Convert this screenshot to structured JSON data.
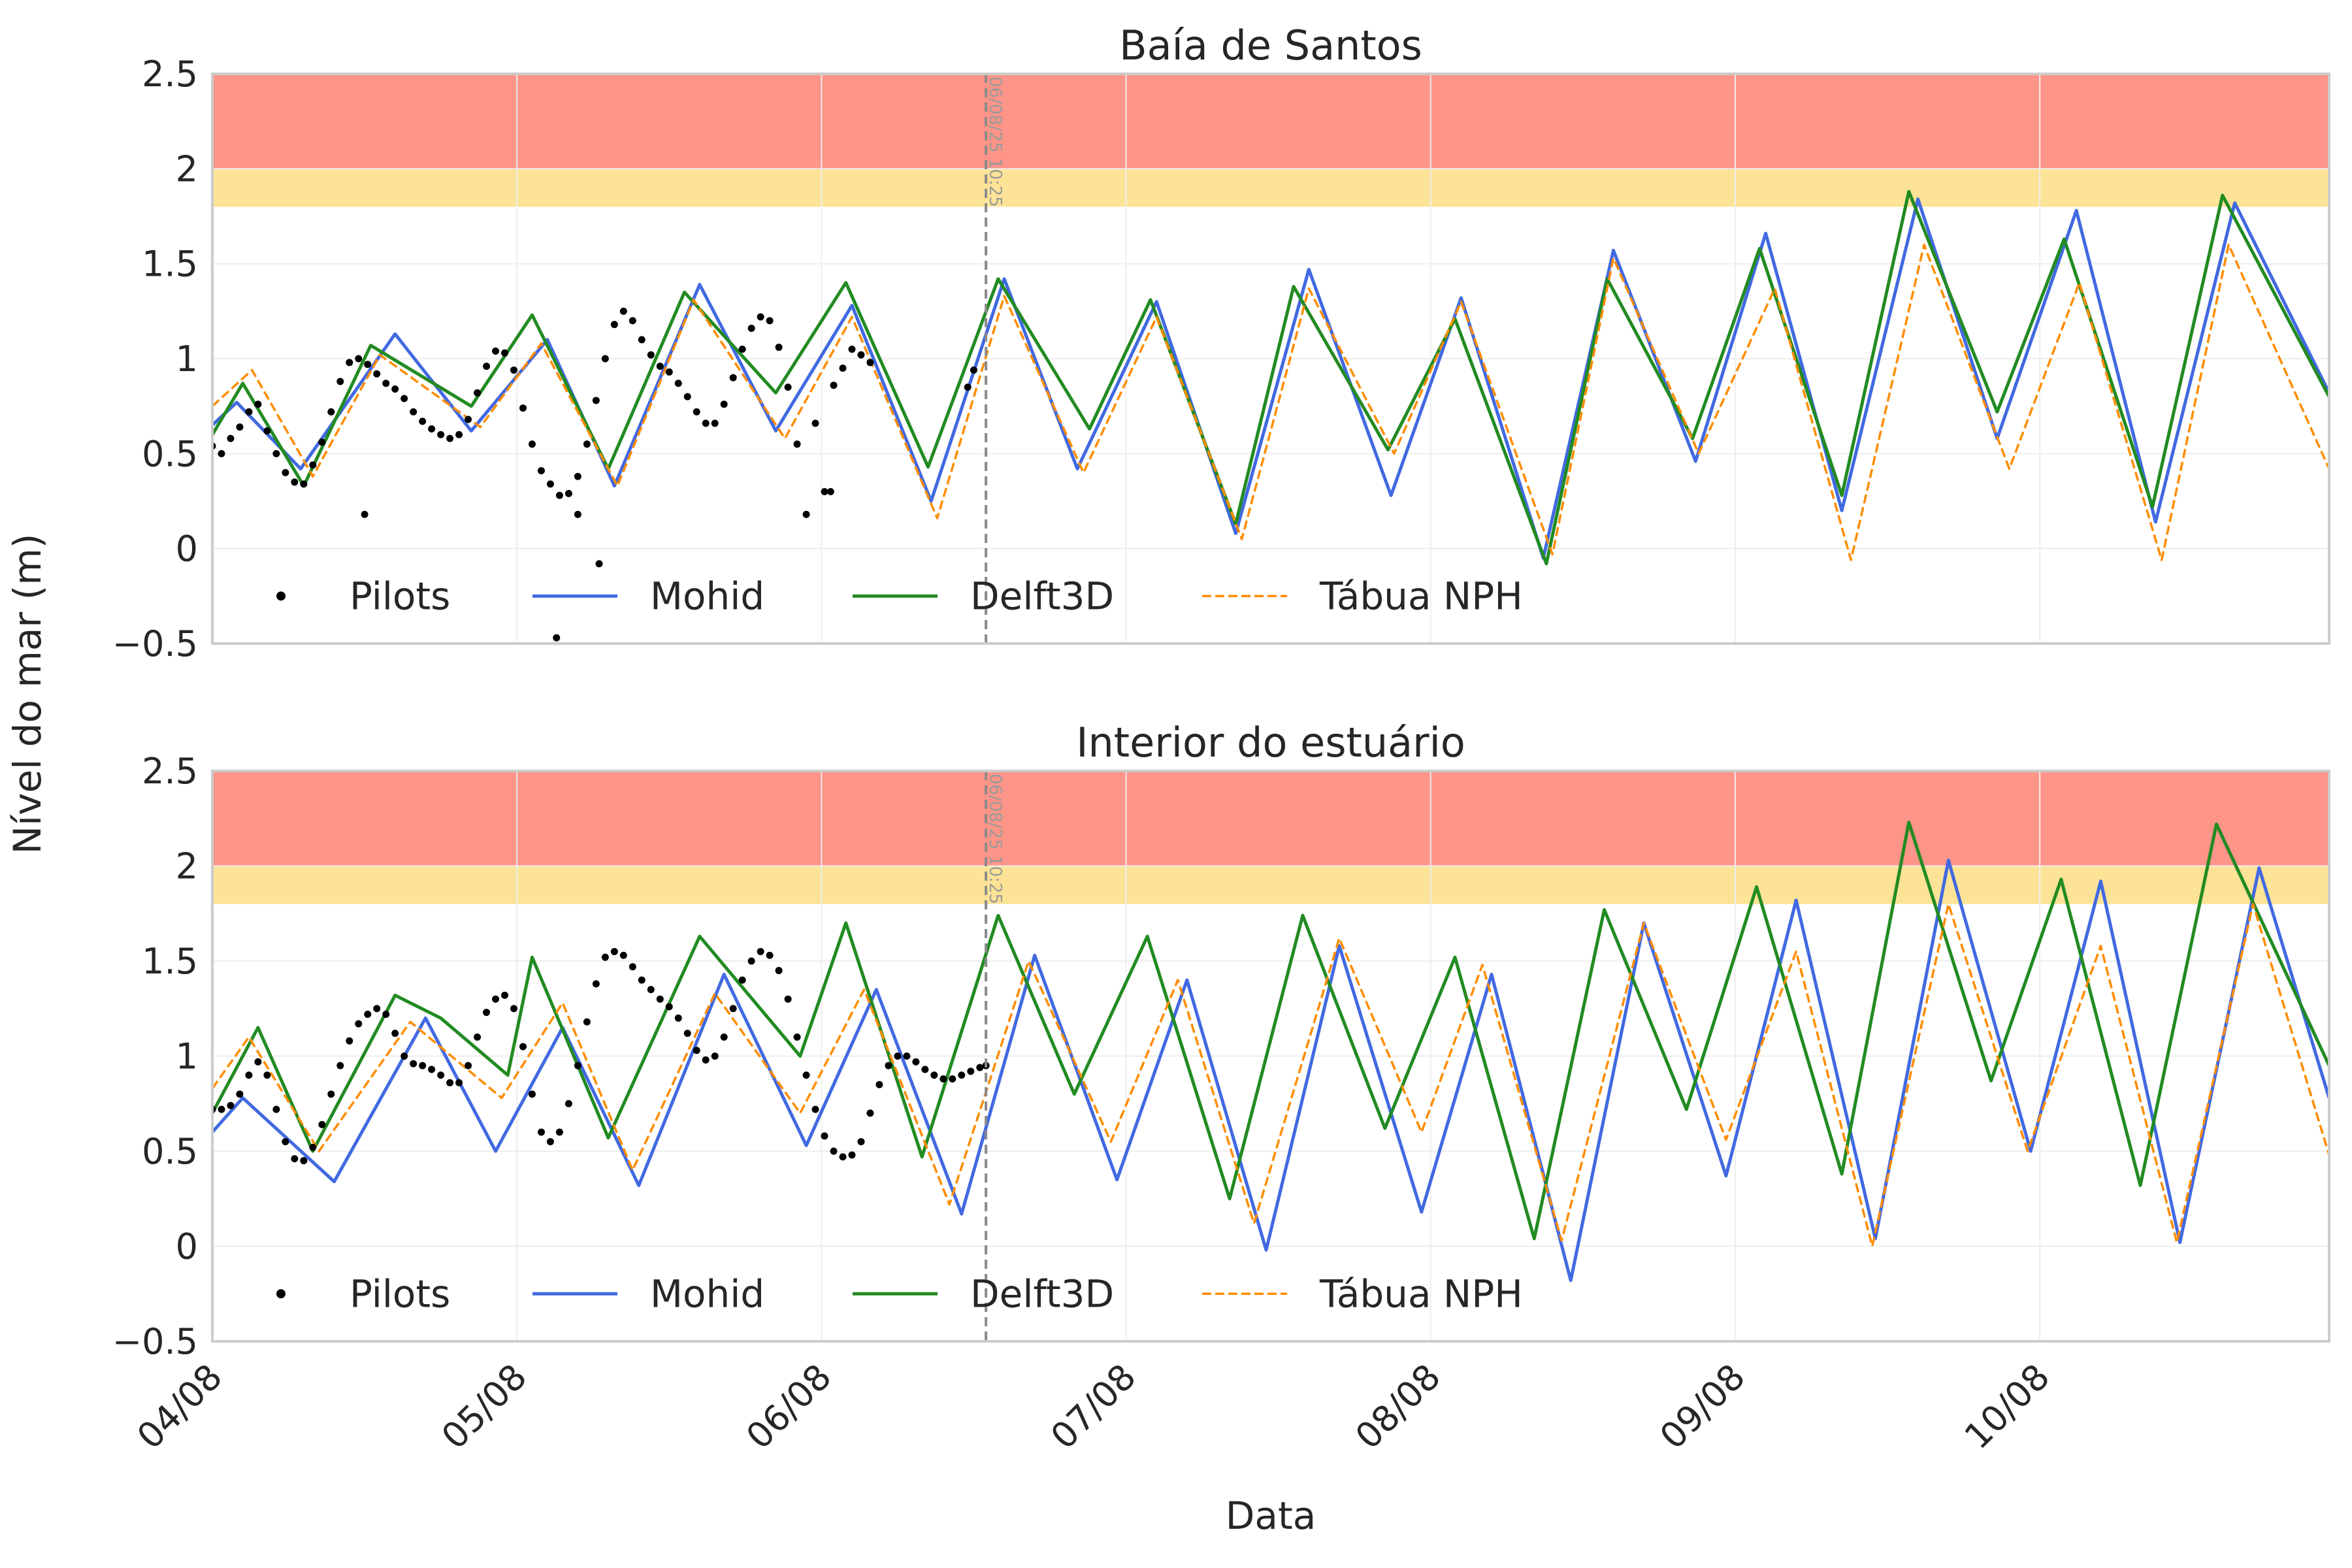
{
  "figure": {
    "ylabel": "Nível do mar (m)",
    "xlabel": "Data",
    "xtick_labels": [
      "04/08",
      "05/08",
      "06/08",
      "07/08",
      "08/08",
      "09/08",
      "10/08"
    ],
    "ytick_labels": [
      "−0.5",
      "0",
      "0.5",
      "1",
      "1.5",
      "2",
      "2.5"
    ]
  },
  "colors": {
    "mohid": "#4169e1",
    "delft3d": "#228b22",
    "tabua": "#ff8c00",
    "pilots": "#000000",
    "band_red": "#ff9488",
    "band_yellow": "#fde396",
    "vline": "#8a8a8a",
    "axes_frame": "#cccccc",
    "grid": "#eeeeee"
  },
  "chart_data": [
    {
      "type": "line",
      "title": "Baía de Santos",
      "xlabel": "Data",
      "ylabel": "Nível do mar (m)",
      "x_start": "04/08 00:00",
      "x_end": "10/08 23:00",
      "xlim_days": [
        0,
        6.95
      ],
      "ylim": [
        -0.5,
        2.5
      ],
      "legend": {
        "placement": "lower-left",
        "entries": [
          "Pilots",
          "Mohid",
          "Delft3D",
          "Tábua NPH"
        ]
      },
      "bands": [
        {
          "from": 1.8,
          "to": 2.0,
          "color": "#fde396"
        },
        {
          "from": 2.0,
          "to": 2.5,
          "color": "#ff9488"
        }
      ],
      "vline": {
        "x_day": 2.54,
        "label": "06/08/25 10:25"
      },
      "series": [
        {
          "name": "Mohid",
          "style": "solid",
          "color": "#4169e1",
          "x": [
            0,
            0.08,
            0.29,
            0.6,
            0.85,
            1.1,
            1.32,
            1.6,
            1.85,
            2.1,
            2.36,
            2.6,
            2.84,
            3.1,
            3.36,
            3.6,
            3.87,
            4.1,
            4.37,
            4.6,
            4.87,
            5.1,
            5.35,
            5.6,
            5.86,
            6.12,
            6.38,
            6.64,
            6.95
          ],
          "y": [
            0.65,
            0.77,
            0.42,
            1.13,
            0.62,
            1.1,
            0.33,
            1.39,
            0.62,
            1.28,
            0.25,
            1.42,
            0.42,
            1.3,
            0.08,
            1.47,
            0.28,
            1.32,
            -0.05,
            1.57,
            0.46,
            1.66,
            0.2,
            1.84,
            0.58,
            1.78,
            0.14,
            1.82,
            0.82
          ]
        },
        {
          "name": "Delft3D",
          "style": "solid",
          "color": "#228b22",
          "x": [
            0,
            0.1,
            0.3,
            0.52,
            0.85,
            1.05,
            1.3,
            1.55,
            1.85,
            2.08,
            2.35,
            2.58,
            2.88,
            3.08,
            3.36,
            3.55,
            3.86,
            4.08,
            4.38,
            4.58,
            4.86,
            5.08,
            5.35,
            5.57,
            5.86,
            6.08,
            6.37,
            6.6,
            6.95
          ],
          "y": [
            0.6,
            0.87,
            0.33,
            1.07,
            0.75,
            1.23,
            0.42,
            1.35,
            0.82,
            1.4,
            0.43,
            1.42,
            0.63,
            1.31,
            0.13,
            1.38,
            0.52,
            1.21,
            -0.08,
            1.42,
            0.58,
            1.58,
            0.28,
            1.88,
            0.72,
            1.63,
            0.22,
            1.86,
            0.8
          ]
        },
        {
          "name": "Tábua NPH",
          "style": "dashed",
          "color": "#ff8c00",
          "x": [
            0,
            0.13,
            0.33,
            0.55,
            0.88,
            1.08,
            1.33,
            1.58,
            1.88,
            2.1,
            2.38,
            2.6,
            2.86,
            3.1,
            3.38,
            3.6,
            3.88,
            4.1,
            4.4,
            4.6,
            4.88,
            5.13,
            5.38,
            5.62,
            5.9,
            6.13,
            6.4,
            6.62,
            6.95
          ],
          "y": [
            0.75,
            0.94,
            0.38,
            1.02,
            0.64,
            1.08,
            0.33,
            1.31,
            0.58,
            1.22,
            0.16,
            1.33,
            0.4,
            1.22,
            0.05,
            1.37,
            0.5,
            1.3,
            -0.03,
            1.53,
            0.5,
            1.37,
            -0.06,
            1.6,
            0.42,
            1.4,
            -0.06,
            1.6,
            0.42
          ]
        }
      ],
      "pilots": {
        "name": "Pilots",
        "color": "#000000",
        "x": [
          0,
          0.03,
          0.06,
          0.09,
          0.12,
          0.15,
          0.18,
          0.21,
          0.24,
          0.27,
          0.3,
          0.33,
          0.36,
          0.39,
          0.42,
          0.45,
          0.48,
          0.51,
          0.54,
          0.57,
          0.6,
          0.63,
          0.66,
          0.69,
          0.72,
          0.75,
          0.78,
          0.81,
          0.84,
          0.87,
          0.9,
          0.93,
          0.96,
          0.99,
          1.02,
          1.05,
          1.08,
          1.11,
          1.14,
          1.17,
          1.2,
          1.23,
          1.26,
          1.29,
          1.32,
          1.35,
          1.38,
          1.41,
          1.44,
          1.47,
          1.5,
          1.53,
          1.56,
          1.59,
          1.62,
          1.65,
          1.68,
          1.71,
          1.74,
          1.77,
          1.8,
          1.83,
          1.86,
          1.89,
          1.92,
          1.95,
          1.98,
          2.01,
          2.04,
          2.07,
          2.1,
          2.13,
          2.16,
          0.5,
          1.27,
          1.13,
          1.2,
          2.03,
          2.48,
          2.5
        ],
        "y": [
          0.54,
          0.5,
          0.58,
          0.64,
          0.72,
          0.76,
          0.62,
          0.5,
          0.4,
          0.35,
          0.34,
          0.44,
          0.56,
          0.72,
          0.88,
          0.98,
          1.0,
          0.97,
          0.92,
          0.87,
          0.84,
          0.79,
          0.72,
          0.67,
          0.63,
          0.6,
          0.58,
          0.6,
          0.68,
          0.82,
          0.96,
          1.04,
          1.03,
          0.94,
          0.74,
          0.55,
          0.41,
          0.34,
          0.28,
          0.29,
          0.38,
          0.55,
          0.78,
          1.0,
          1.18,
          1.25,
          1.2,
          1.1,
          1.02,
          0.96,
          0.93,
          0.87,
          0.8,
          0.72,
          0.66,
          0.66,
          0.76,
          0.9,
          1.05,
          1.16,
          1.22,
          1.2,
          1.06,
          0.85,
          0.55,
          0.18,
          0.66,
          0.3,
          0.86,
          0.95,
          1.05,
          1.02,
          0.98,
          0.18,
          -0.08,
          -0.47,
          0.18,
          0.3,
          0.85,
          0.94
        ]
      }
    },
    {
      "type": "line",
      "title": "Interior do estuário",
      "xlabel": "Data",
      "ylabel": "Nível do mar (m)",
      "x_start": "04/08 00:00",
      "x_end": "10/08 23:00",
      "xlim_days": [
        0,
        6.95
      ],
      "ylim": [
        -0.5,
        2.5
      ],
      "legend": {
        "placement": "lower-left",
        "entries": [
          "Pilots",
          "Mohid",
          "Delft3D",
          "Tábua NPH"
        ]
      },
      "bands": [
        {
          "from": 1.8,
          "to": 2.0,
          "color": "#fde396"
        },
        {
          "from": 2.0,
          "to": 2.5,
          "color": "#ff9488"
        }
      ],
      "vline": {
        "x_day": 2.54,
        "label": "06/08/25 10:25"
      },
      "series": [
        {
          "name": "Mohid",
          "style": "solid",
          "color": "#4169e1",
          "x": [
            0,
            0.1,
            0.4,
            0.7,
            0.93,
            1.15,
            1.4,
            1.68,
            1.95,
            2.18,
            2.46,
            2.7,
            2.97,
            3.2,
            3.46,
            3.7,
            3.97,
            4.2,
            4.46,
            4.7,
            4.97,
            5.2,
            5.46,
            5.7,
            5.97,
            6.2,
            6.46,
            6.72,
            6.95
          ],
          "y": [
            0.6,
            0.78,
            0.34,
            1.2,
            0.5,
            1.15,
            0.32,
            1.43,
            0.53,
            1.35,
            0.17,
            1.53,
            0.35,
            1.4,
            -0.02,
            1.58,
            0.18,
            1.43,
            -0.18,
            1.7,
            0.37,
            1.82,
            0.04,
            2.03,
            0.5,
            1.92,
            0.02,
            1.99,
            0.78
          ]
        },
        {
          "name": "Delft3D",
          "style": "solid",
          "color": "#228b22",
          "x": [
            0,
            0.15,
            0.33,
            0.6,
            0.75,
            0.97,
            1.05,
            1.3,
            1.6,
            1.93,
            2.08,
            2.33,
            2.58,
            2.83,
            3.07,
            3.34,
            3.58,
            3.85,
            4.08,
            4.34,
            4.57,
            4.84,
            5.07,
            5.35,
            5.57,
            5.84,
            6.07,
            6.33,
            6.58,
            6.95
          ],
          "y": [
            0.7,
            1.15,
            0.5,
            1.32,
            1.2,
            0.9,
            1.52,
            0.57,
            1.63,
            1.0,
            1.7,
            0.47,
            1.74,
            0.8,
            1.63,
            0.25,
            1.74,
            0.62,
            1.52,
            0.04,
            1.77,
            0.72,
            1.89,
            0.38,
            2.23,
            0.87,
            1.93,
            0.32,
            2.22,
            0.95
          ]
        },
        {
          "name": "Tábua NPH",
          "style": "dashed",
          "color": "#ff8c00",
          "x": [
            0,
            0.12,
            0.35,
            0.65,
            0.95,
            1.15,
            1.38,
            1.65,
            1.93,
            2.14,
            2.42,
            2.68,
            2.95,
            3.17,
            3.42,
            3.7,
            3.97,
            4.17,
            4.43,
            4.7,
            4.97,
            5.2,
            5.45,
            5.7,
            5.96,
            6.2,
            6.45,
            6.7,
            6.95
          ],
          "y": [
            0.83,
            1.1,
            0.5,
            1.18,
            0.78,
            1.28,
            0.4,
            1.33,
            0.7,
            1.35,
            0.22,
            1.5,
            0.55,
            1.4,
            0.12,
            1.62,
            0.6,
            1.48,
            0.03,
            1.7,
            0.56,
            1.55,
            0.0,
            1.8,
            0.5,
            1.58,
            0.02,
            1.8,
            0.48
          ]
        }
      ],
      "pilots": {
        "name": "Pilots",
        "color": "#000000",
        "x": [
          0,
          0.03,
          0.06,
          0.09,
          0.12,
          0.15,
          0.18,
          0.21,
          0.24,
          0.27,
          0.3,
          0.33,
          0.36,
          0.39,
          0.42,
          0.45,
          0.48,
          0.51,
          0.54,
          0.57,
          0.6,
          0.63,
          0.66,
          0.69,
          0.72,
          0.75,
          0.78,
          0.81,
          0.84,
          0.87,
          0.9,
          0.93,
          0.96,
          0.99,
          1.02,
          1.05,
          1.08,
          1.11,
          1.14,
          1.17,
          1.2,
          1.23,
          1.26,
          1.29,
          1.32,
          1.35,
          1.38,
          1.41,
          1.44,
          1.47,
          1.5,
          1.53,
          1.56,
          1.59,
          1.62,
          1.65,
          1.68,
          1.71,
          1.74,
          1.77,
          1.8,
          1.83,
          1.86,
          1.89,
          1.92,
          1.95,
          1.98,
          2.01,
          2.04,
          2.07,
          2.1,
          2.13,
          2.16,
          2.19,
          2.22,
          2.25,
          2.28,
          2.31,
          2.34,
          2.37,
          2.4,
          2.43,
          2.46,
          2.49,
          2.52,
          2.54
        ],
        "y": [
          0.72,
          0.72,
          0.74,
          0.8,
          0.9,
          0.97,
          0.9,
          0.72,
          0.55,
          0.46,
          0.45,
          0.52,
          0.64,
          0.8,
          0.95,
          1.08,
          1.17,
          1.22,
          1.25,
          1.22,
          1.12,
          1.0,
          0.96,
          0.95,
          0.93,
          0.9,
          0.86,
          0.86,
          0.95,
          1.1,
          1.23,
          1.3,
          1.32,
          1.25,
          1.05,
          0.8,
          0.6,
          0.55,
          0.6,
          0.75,
          0.95,
          1.18,
          1.38,
          1.52,
          1.55,
          1.53,
          1.47,
          1.4,
          1.35,
          1.3,
          1.26,
          1.2,
          1.12,
          1.03,
          0.98,
          1.0,
          1.1,
          1.25,
          1.4,
          1.5,
          1.55,
          1.53,
          1.45,
          1.3,
          1.1,
          0.9,
          0.72,
          0.58,
          0.5,
          0.47,
          0.48,
          0.55,
          0.7,
          0.85,
          0.95,
          1.0,
          1.0,
          0.97,
          0.93,
          0.9,
          0.88,
          0.88,
          0.9,
          0.92,
          0.94,
          0.95
        ]
      }
    }
  ]
}
